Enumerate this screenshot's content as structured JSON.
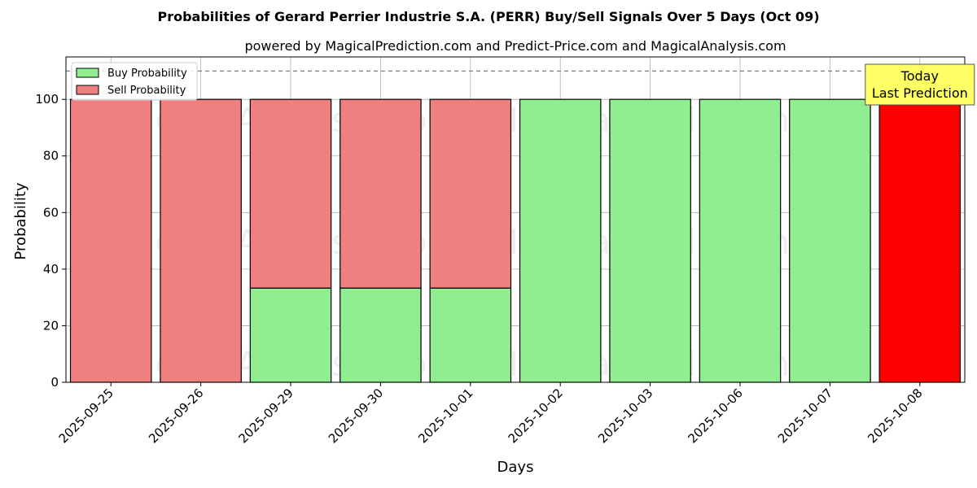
{
  "chart_data": {
    "type": "bar",
    "stacked": true,
    "title": "Probabilities of Gerard Perrier Industrie S.A. (PERR) Buy/Sell Signals Over 5 Days (Oct 09)",
    "subtitle": "powered by MagicalPrediction.com and Predict-Price.com and MagicalAnalysis.com",
    "xlabel": "Days",
    "ylabel": "Probability",
    "ylim": [
      0,
      115
    ],
    "yticks": [
      0,
      20,
      40,
      60,
      80,
      100
    ],
    "grid": true,
    "legend_position": "top-left",
    "categories": [
      "2025-09-25",
      "2025-09-26",
      "2025-09-29",
      "2025-09-30",
      "2025-10-01",
      "2025-10-02",
      "2025-10-03",
      "2025-10-06",
      "2025-10-07",
      "2025-10-08"
    ],
    "series": [
      {
        "name": "Buy Probability",
        "color": "#90ee90",
        "values": [
          0,
          0,
          33.3,
          33.3,
          33.3,
          100,
          100,
          100,
          100,
          0
        ]
      },
      {
        "name": "Sell Probability",
        "color": "#f08080",
        "values": [
          100,
          100,
          66.7,
          66.7,
          66.7,
          0,
          0,
          0,
          0,
          100
        ]
      }
    ],
    "highlight": {
      "index": 9,
      "color": "#ff0000"
    },
    "reference_line": {
      "y": 110,
      "style": "dashed",
      "color": "#808080"
    },
    "annotation": {
      "lines": [
        "Today",
        "Last Prediction"
      ],
      "background": "#ffff66"
    },
    "watermarks": [
      "MagicalAnalysis.com",
      "MagicalPrediction.com"
    ]
  }
}
